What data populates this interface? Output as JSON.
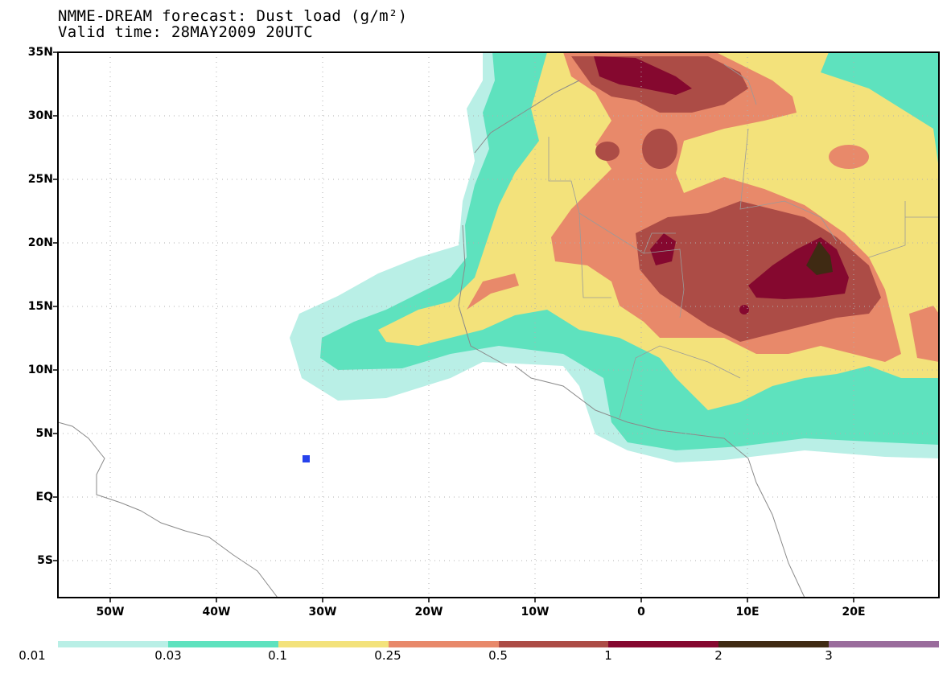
{
  "header": {
    "title": "NMME-DREAM forecast: Dust load (g/m²)",
    "valid_time": "Valid time: 28MAY2009 20UTC"
  },
  "axes": {
    "lat_labels": [
      "35N",
      "30N",
      "25N",
      "20N",
      "15N",
      "10N",
      "5N",
      "EQ",
      "5S"
    ],
    "lon_labels": [
      "50W",
      "40W",
      "30W",
      "20W",
      "10W",
      "0",
      "10E",
      "20E"
    ]
  },
  "colorbar": {
    "labels": [
      "0.01",
      "0.03",
      "0.1",
      "0.25",
      "0.5",
      "1",
      "2",
      "3"
    ],
    "colors": [
      "#b9efe6",
      "#5ee2be",
      "#f3e27b",
      "#e8896a",
      "#ac4c46",
      "#85082f",
      "#3f2a13",
      "#9a6c9c"
    ]
  },
  "map": {
    "region": "North Atlantic / North Africa",
    "marker_color": "#2642ec"
  }
}
